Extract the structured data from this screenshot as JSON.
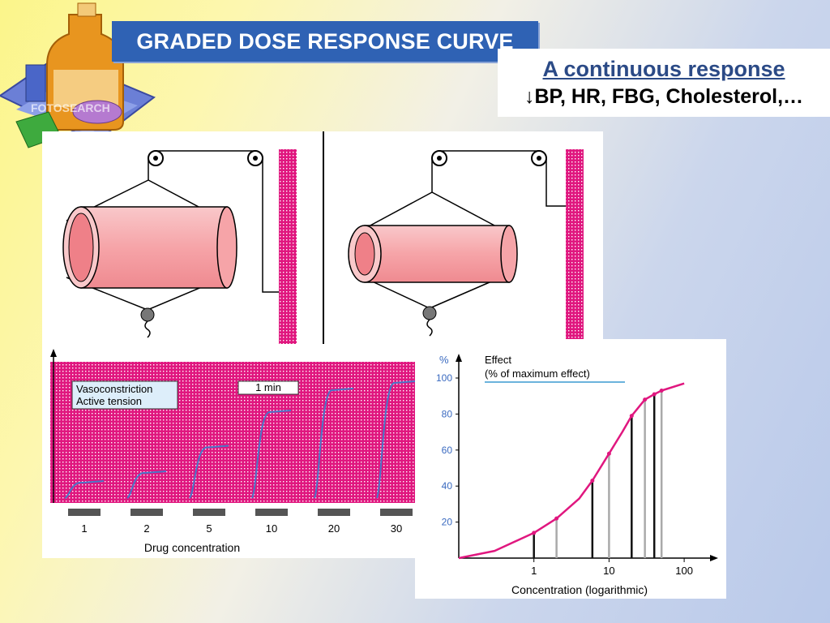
{
  "slide": {
    "title": "GRADED DOSE RESPONSE CURVE",
    "subtitle_line1": "A continuous response",
    "subtitle_line2": "↓BP, HR, FBG, Cholesterol,…",
    "watermark": "FOTOSEARCH"
  },
  "colors": {
    "title_bg": "#2f62b4",
    "magenta": "#e0177f",
    "curve_blue": "#4a76c8",
    "vessel_pink": "#f6a4a8"
  },
  "tracing": {
    "label_line1": "Vasoconstriction",
    "label_line2": "Active tension",
    "time_marker": "1 min",
    "xlabel": "Drug concentration",
    "doses": [
      "1",
      "2",
      "5",
      "10",
      "20",
      "30"
    ],
    "response_fraction": [
      0.14,
      0.22,
      0.43,
      0.72,
      0.9,
      0.96
    ]
  },
  "chart_data": {
    "type": "line",
    "ylabel_unit": "%",
    "ylabel_line1": "Effect",
    "ylabel_line2": "(% of maximum effect)",
    "xlabel": "Concentration (logarithmic)",
    "x_scale": "log",
    "xticks": [
      "1",
      "10",
      "100"
    ],
    "yticks": [
      "20",
      "40",
      "60",
      "80",
      "100"
    ],
    "ylim": [
      0,
      100
    ],
    "xlim": [
      0.1,
      200
    ],
    "curve": {
      "x": [
        0.1,
        0.3,
        1,
        2,
        4,
        6,
        10,
        15,
        20,
        30,
        40,
        50,
        100
      ],
      "y": [
        0,
        4,
        14,
        22,
        33,
        43,
        58,
        70,
        79,
        88,
        91,
        93,
        97
      ]
    },
    "markers": {
      "x": [
        1,
        2,
        6,
        10,
        20,
        30,
        40,
        50
      ],
      "y": [
        14,
        22,
        43,
        58,
        79,
        88,
        91,
        93
      ]
    }
  }
}
